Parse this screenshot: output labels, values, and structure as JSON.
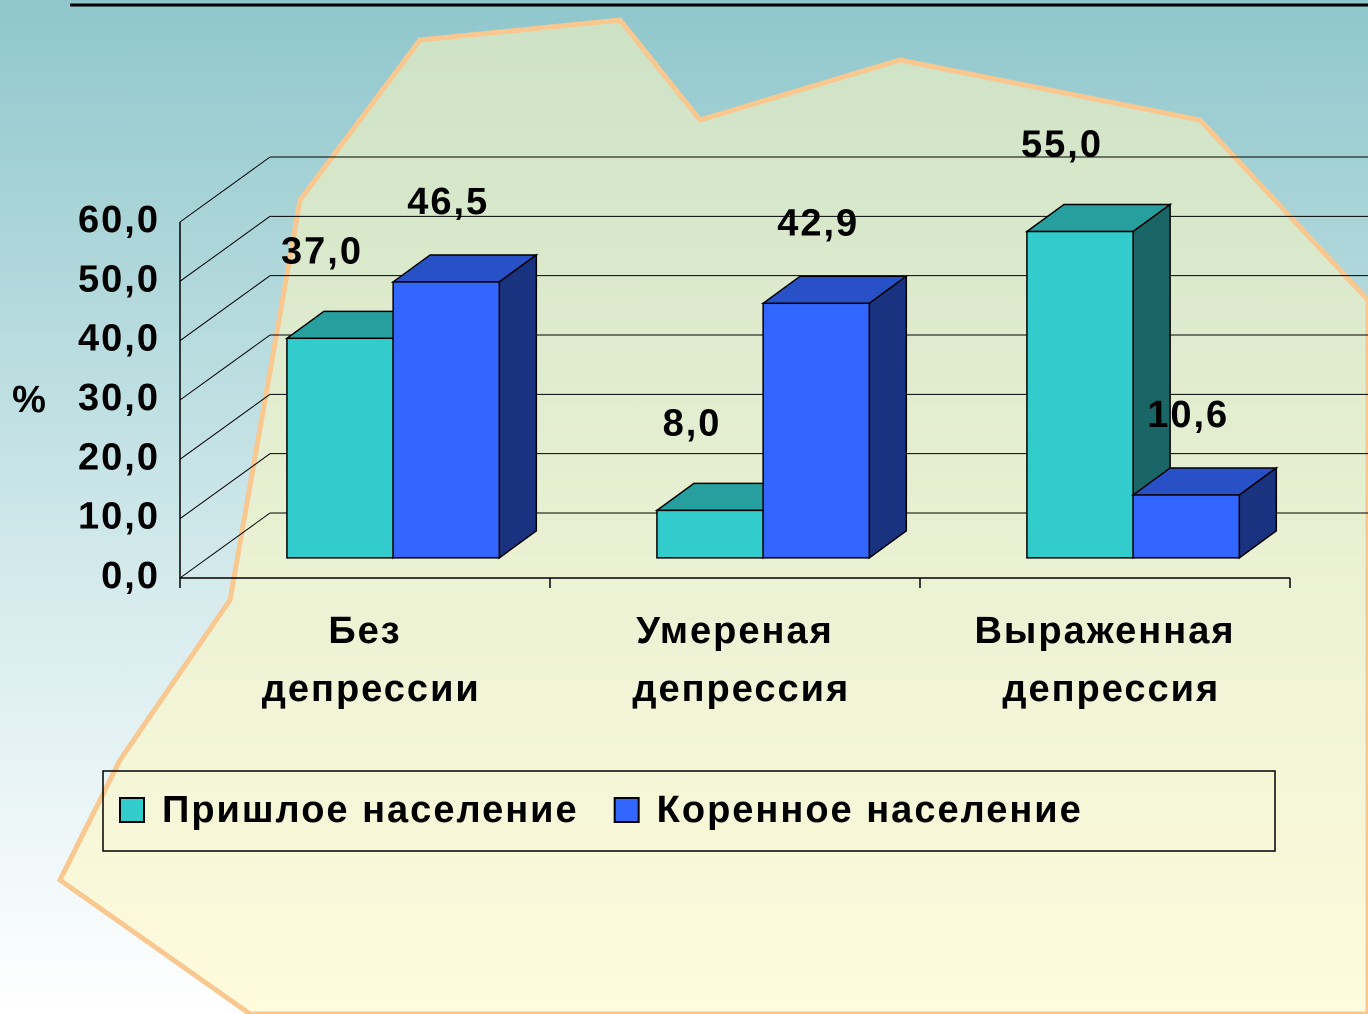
{
  "chart_data": {
    "type": "bar3d",
    "y_label": "%",
    "categories": [
      "Без депрессии",
      "Умереная депрессия",
      "Выраженная депрессия"
    ],
    "series": [
      {
        "name": "Пришлое население",
        "color": "#33CCCC",
        "values": [
          37.0,
          8.0,
          55.0
        ],
        "value_labels": [
          "37,0",
          "8,0",
          "55,0"
        ]
      },
      {
        "name": "Коренное население",
        "color": "#3366FF",
        "values": [
          46.5,
          42.9,
          10.6
        ],
        "value_labels": [
          "46,5",
          "42,9",
          "10,6"
        ]
      }
    ],
    "ylim": [
      0,
      60
    ],
    "yticks": [
      {
        "value": 0,
        "label": "0,0"
      },
      {
        "value": 10,
        "label": "10,0"
      },
      {
        "value": 20,
        "label": "20,0"
      },
      {
        "value": 30,
        "label": "30,0"
      },
      {
        "value": 40,
        "label": "40,0"
      },
      {
        "value": 50,
        "label": "50,0"
      },
      {
        "value": 60,
        "label": "60,0"
      }
    ],
    "grid": true
  }
}
